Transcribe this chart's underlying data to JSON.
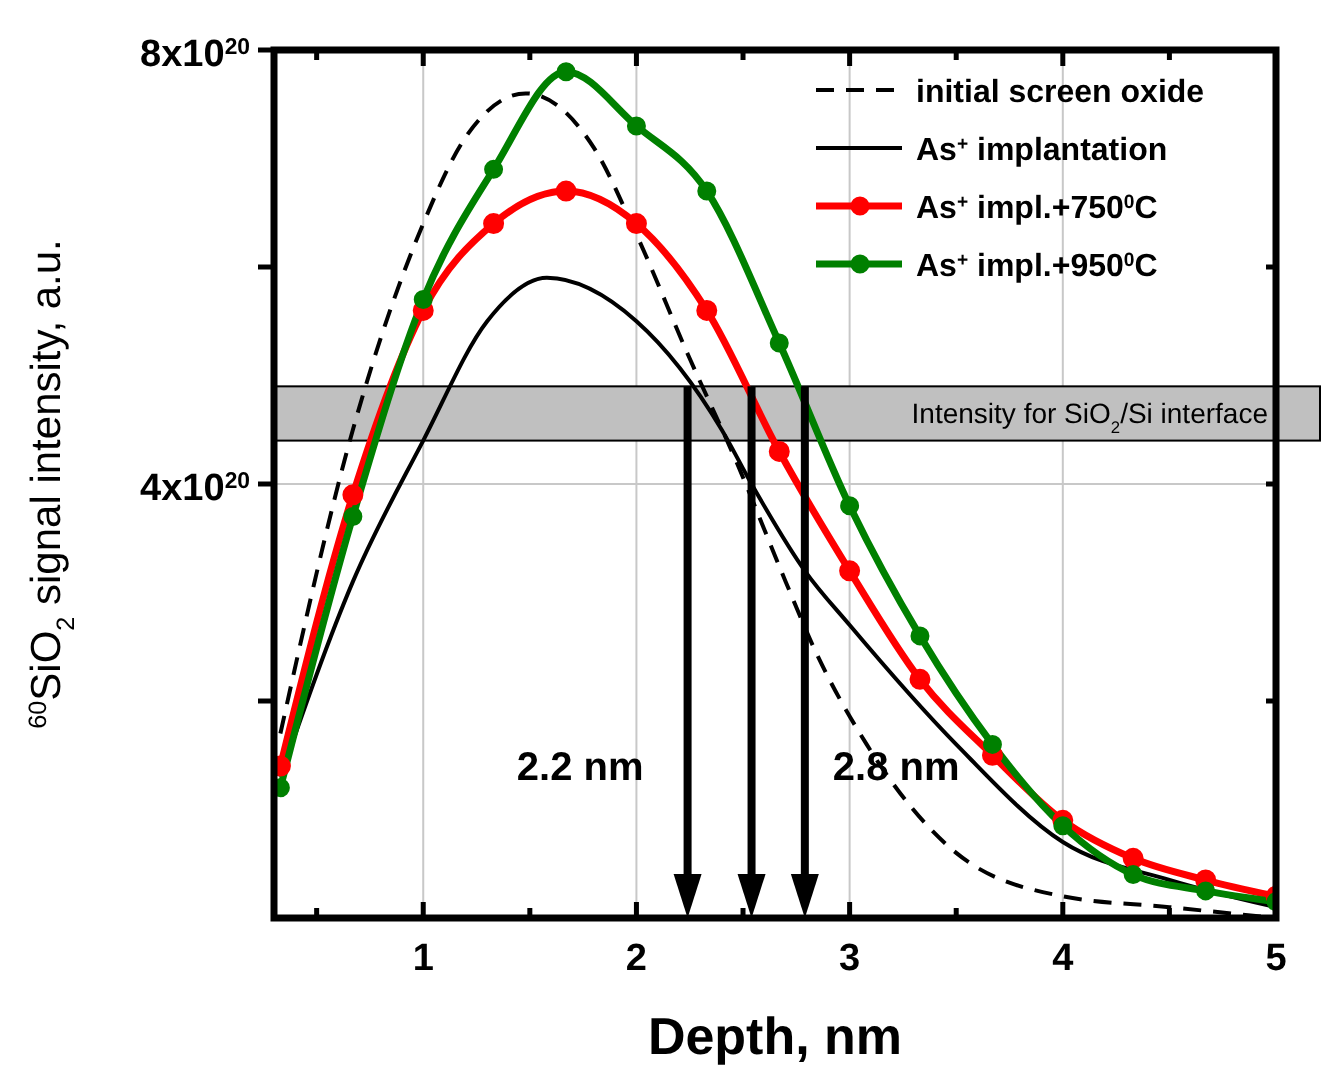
{
  "chart_data": {
    "type": "line",
    "xlabel": "Depth, nm",
    "ylabel": "$^{60}$SiO$_{2}$ signal intensity, a.u.",
    "xlim": [
      0.3,
      5
    ],
    "ylim": [
      0,
      8e+20
    ],
    "xticks": [
      {
        "value": 0.5,
        "label": null
      },
      1,
      {
        "value": 1.5,
        "label": null
      },
      2,
      {
        "value": 2.5,
        "label": null
      },
      3,
      {
        "value": 3.5,
        "label": null
      },
      4,
      {
        "value": 4.5,
        "label": null
      },
      5
    ],
    "yticks": [
      {
        "value": 2e+20,
        "label": null
      },
      {
        "value": 4e+20,
        "label": "4x10$^{20}$"
      },
      {
        "value": 6e+20,
        "label": null
      },
      {
        "value": 8e+20,
        "label": "8x10$^{20}$"
      }
    ],
    "grid": true,
    "legend": "top right",
    "series": [
      {
        "name": "initial screen oxide",
        "color": "#000000",
        "line_style": "dashed",
        "marker": "none",
        "x": [
          0.33,
          0.67,
          1.0,
          1.2,
          1.48,
          1.8,
          2.0,
          2.24,
          2.47,
          2.7,
          2.83,
          3.08,
          3.5,
          4.0,
          4.5,
          5.0
        ],
        "values": [
          1.7e+20,
          4.5e+20,
          6.4e+20,
          7.2e+20,
          7.6e+20,
          7.1e+20,
          6.3e+20,
          5.2e+20,
          4.2e+20,
          3.1e+20,
          2.5e+20,
          1.6e+20,
          6e+19,
          2e+19,
          1e+19,
          0
        ]
      },
      {
        "name": "As$^{+}$ implantation",
        "color": "#000000",
        "line_style": "solid",
        "marker": "none",
        "x": [
          0.33,
          0.67,
          1.0,
          1.3,
          1.58,
          2.0,
          2.4,
          2.54,
          2.79,
          3.0,
          3.5,
          4.0,
          4.5,
          5.0
        ],
        "values": [
          1.3e+20,
          3.1e+20,
          4.4e+20,
          5.5e+20,
          5.9e+20,
          5.5e+20,
          4.5e+20,
          4e+20,
          3.2e+20,
          2.7e+20,
          1.6e+20,
          7e+19,
          3.5e+19,
          1e+19
        ]
      },
      {
        "name": "As$^{+}$ impl.+750$^{0}$C",
        "color": "#ff0000",
        "line_style": "solid",
        "marker": "circle",
        "x": [
          0.33,
          0.67,
          1.0,
          1.33,
          1.67,
          2.0,
          2.33,
          2.67,
          3.0,
          3.33,
          3.67,
          4.0,
          4.33,
          4.67,
          5.0
        ],
        "values": [
          1.4e+20,
          3.9e+20,
          5.6e+20,
          6.4e+20,
          6.7e+20,
          6.4e+20,
          5.6e+20,
          4.3e+20,
          3.2e+20,
          2.2e+20,
          1.5e+20,
          9e+19,
          5.5e+19,
          3.5e+19,
          2e+19
        ]
      },
      {
        "name": "As$^{+}$ impl.+950$^{0}$C",
        "color": "#008000",
        "line_style": "solid",
        "marker": "circle",
        "x": [
          0.33,
          0.67,
          1.0,
          1.33,
          1.67,
          2.0,
          2.33,
          2.67,
          3.0,
          3.33,
          3.67,
          4.0,
          4.33,
          4.67,
          5.0
        ],
        "values": [
          1.2e+20,
          3.7e+20,
          5.7e+20,
          6.9e+20,
          7.8e+20,
          7.3e+20,
          6.7e+20,
          5.3e+20,
          3.8e+20,
          2.6e+20,
          1.6e+20,
          8.5e+19,
          4e+19,
          2.5e+19,
          1.5e+19
        ]
      }
    ],
    "bands": [
      {
        "axis": "y",
        "from": 4.4e+20,
        "to": 4.9e+20,
        "label": "Intensity for SiO$_{2}$/Si interface",
        "color": "#c0c0c0"
      }
    ],
    "ref_lines": [
      {
        "axis": "x",
        "value": 2.24,
        "label": "2.2 nm"
      },
      {
        "axis": "x",
        "value": 2.54
      },
      {
        "axis": "x",
        "value": 2.79,
        "label": "2.8 nm"
      }
    ]
  }
}
